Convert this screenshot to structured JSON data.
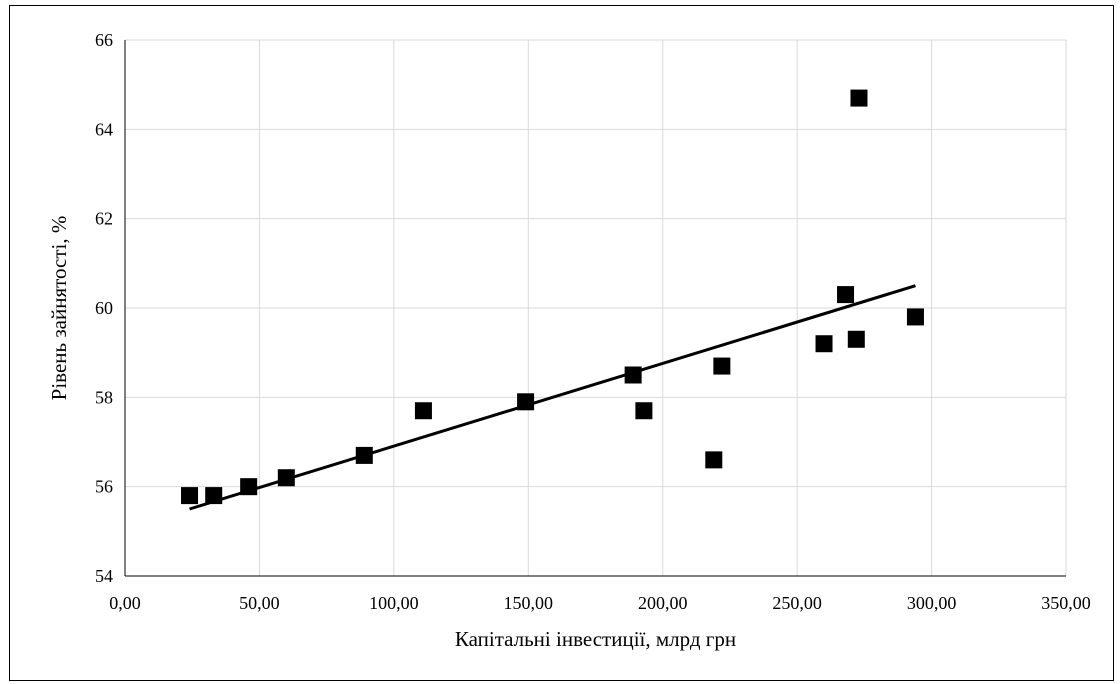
{
  "chart_data": {
    "type": "scatter",
    "title": "",
    "xlabel": "Капітальні інвестиції, млрд грн",
    "ylabel": "Рівень зайнятості, %",
    "xlim": [
      0,
      350
    ],
    "ylim": [
      54,
      66
    ],
    "x_ticks": [
      0,
      50,
      100,
      150,
      200,
      250,
      300,
      350
    ],
    "x_tick_labels": [
      "0,00",
      "50,00",
      "100,00",
      "150,00",
      "200,00",
      "250,00",
      "300,00",
      "350,00"
    ],
    "y_ticks": [
      54,
      56,
      58,
      60,
      62,
      64,
      66
    ],
    "y_tick_labels": [
      "54",
      "56",
      "58",
      "60",
      "62",
      "64",
      "66"
    ],
    "grid": true,
    "legend": "none",
    "marker": "square",
    "marker_color": "#000000",
    "trendline": {
      "type": "linear",
      "x": [
        24,
        294
      ],
      "y": [
        55.5,
        60.5
      ],
      "color": "#000000"
    },
    "series": [
      {
        "points": [
          {
            "x": 24,
            "y": 55.8
          },
          {
            "x": 33,
            "y": 55.8
          },
          {
            "x": 46,
            "y": 56.0
          },
          {
            "x": 60,
            "y": 56.2
          },
          {
            "x": 89,
            "y": 56.7
          },
          {
            "x": 111,
            "y": 57.7
          },
          {
            "x": 149,
            "y": 57.9
          },
          {
            "x": 189,
            "y": 58.5
          },
          {
            "x": 193,
            "y": 57.7
          },
          {
            "x": 219,
            "y": 56.6
          },
          {
            "x": 222,
            "y": 58.7
          },
          {
            "x": 260,
            "y": 59.2
          },
          {
            "x": 268,
            "y": 60.3
          },
          {
            "x": 272,
            "y": 59.3
          },
          {
            "x": 273,
            "y": 64.7
          },
          {
            "x": 294,
            "y": 59.8
          }
        ]
      }
    ]
  }
}
